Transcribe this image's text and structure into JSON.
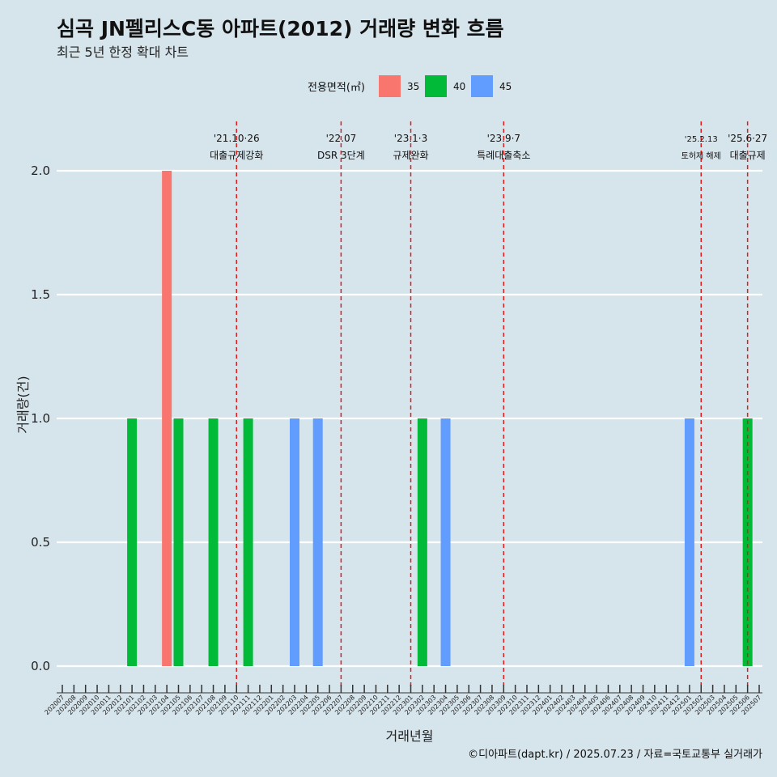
{
  "chart_data": {
    "type": "bar",
    "title": "심곡 JN펠리스C동 아파트(2012) 거래량 변화 흐름",
    "subtitle": "최근 5년 한정 확대 차트",
    "xlabel": "거래년월",
    "ylabel": "거래량(건)",
    "ylim": [
      0,
      2.1
    ],
    "yticks": [
      "0.0",
      "0.5",
      "1.0",
      "1.5",
      "2.0"
    ],
    "ytick_values": [
      0,
      0.5,
      1.0,
      1.5,
      2.0
    ],
    "legend": {
      "title": "전용면적(㎡)",
      "position": "top",
      "entries": [
        {
          "label": "35",
          "color": "#f8766d"
        },
        {
          "label": "40",
          "color": "#00ba38"
        },
        {
          "label": "45",
          "color": "#619cff"
        }
      ]
    },
    "categories": [
      "202007",
      "202008",
      "202009",
      "202010",
      "202011",
      "202012",
      "202101",
      "202102",
      "202103",
      "202104",
      "202105",
      "202106",
      "202107",
      "202108",
      "202109",
      "202110",
      "202111",
      "202112",
      "202201",
      "202202",
      "202203",
      "202204",
      "202205",
      "202206",
      "202207",
      "202208",
      "202209",
      "202210",
      "202211",
      "202212",
      "202301",
      "202302",
      "202303",
      "202304",
      "202305",
      "202306",
      "202307",
      "202308",
      "202309",
      "202310",
      "202311",
      "202312",
      "202401",
      "202402",
      "202403",
      "202404",
      "202405",
      "202406",
      "202407",
      "202408",
      "202409",
      "202410",
      "202411",
      "202412",
      "202501",
      "202502",
      "202503",
      "202504",
      "202505",
      "202506",
      "202507"
    ],
    "series": [
      {
        "name": "35",
        "color": "#f8766d",
        "points": [
          {
            "x": "202104",
            "y": 2
          }
        ]
      },
      {
        "name": "40",
        "color": "#00ba38",
        "points": [
          {
            "x": "202101",
            "y": 1
          },
          {
            "x": "202105",
            "y": 1
          },
          {
            "x": "202108",
            "y": 1
          },
          {
            "x": "202111",
            "y": 1
          },
          {
            "x": "202302",
            "y": 1
          },
          {
            "x": "202506",
            "y": 1
          }
        ]
      },
      {
        "name": "45",
        "color": "#619cff",
        "points": [
          {
            "x": "202203",
            "y": 1
          },
          {
            "x": "202205",
            "y": 1
          },
          {
            "x": "202304",
            "y": 1
          },
          {
            "x": "202501",
            "y": 1
          }
        ]
      }
    ],
    "annotations": [
      {
        "x": "202110",
        "date": "'21.10·26",
        "label": "대출규제강화"
      },
      {
        "x": "202207",
        "date": "'22.07",
        "label": "DSR 3단계"
      },
      {
        "x": "202301",
        "date": "'23.1·3",
        "label": "규제완화"
      },
      {
        "x": "202309",
        "date": "'23.9·7",
        "label": "특례대출축소"
      },
      {
        "x": "202502",
        "date": "'25.2.13",
        "label": "토허제 해제",
        "small": true
      },
      {
        "x": "202506",
        "date": "'25.6·27",
        "label": "대출규제"
      }
    ],
    "annotation_line_color": "#e31a1c",
    "caption": "©디아파트(dapt.kr) / 2025.07.23 / 자료=국토교통부 실거래가"
  }
}
